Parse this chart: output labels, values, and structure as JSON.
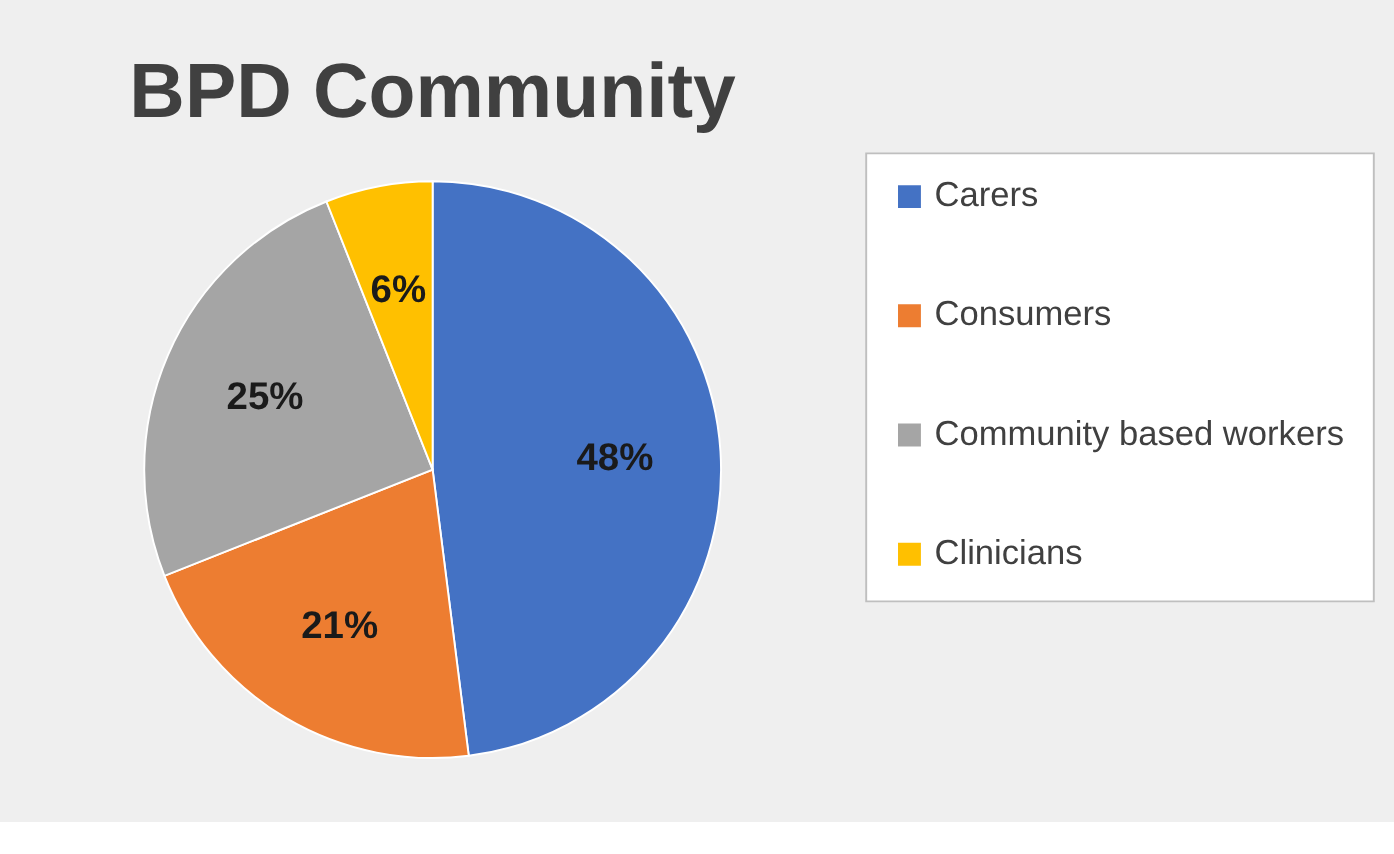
{
  "chart_data": {
    "type": "pie",
    "title": "BPD Community",
    "categories": [
      "Carers",
      "Consumers",
      "Community based workers",
      "Clinicians"
    ],
    "values": [
      48,
      21,
      25,
      6
    ],
    "colors": [
      "#4472c4",
      "#ed7d31",
      "#a5a5a5",
      "#ffc000"
    ],
    "value_labels": [
      "48%",
      "21%",
      "25%",
      "6%"
    ],
    "legend": "right"
  }
}
